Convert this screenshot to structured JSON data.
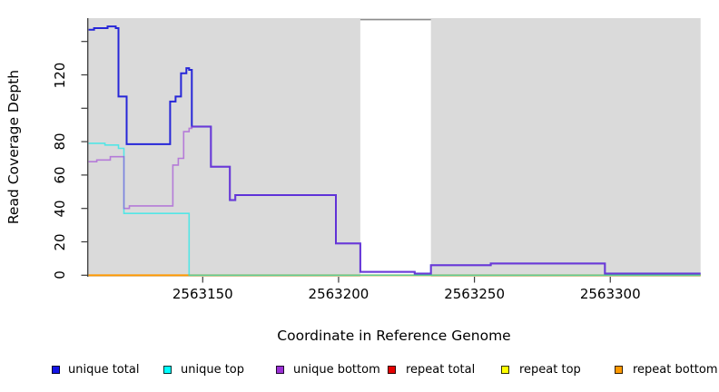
{
  "chart_data": {
    "type": "line",
    "step": true,
    "title": "",
    "xlabel": "Coordinate in Reference Genome",
    "ylabel": "Read Coverage Depth",
    "xlim": [
      2563108,
      2563334
    ],
    "ylim": [
      0,
      154
    ],
    "grid": false,
    "plot_background": "#DADADA",
    "masked_region": {
      "x_start": 2563208,
      "x_end": 2563234,
      "fill": "#FFFFFF",
      "top_border": "#8C8C8C"
    },
    "x_ticks": [
      {
        "value": 2563150,
        "label": "2563150"
      },
      {
        "value": 2563200,
        "label": "2563200"
      },
      {
        "value": 2563250,
        "label": "2563250"
      },
      {
        "value": 2563300,
        "label": "2563300"
      }
    ],
    "y_ticks": [
      {
        "value": 0,
        "label": "0"
      },
      {
        "value": 20,
        "label": "20"
      },
      {
        "value": 40,
        "label": "40"
      },
      {
        "value": 60,
        "label": "60"
      },
      {
        "value": 80,
        "label": "80"
      },
      {
        "value": 100,
        "label": ""
      },
      {
        "value": 120,
        "label": "120"
      },
      {
        "value": 140,
        "label": ""
      }
    ],
    "legend_position": "bottom",
    "series": [
      {
        "name": "unique total",
        "swatch": "#1414E6",
        "stroke": "#2626D8",
        "width": 2,
        "z": 3,
        "points": [
          [
            2563108,
            147
          ],
          [
            2563110,
            148
          ],
          [
            2563115,
            149
          ],
          [
            2563118,
            148
          ],
          [
            2563119,
            107
          ],
          [
            2563122,
            78.5
          ],
          [
            2563138,
            104
          ],
          [
            2563140,
            107
          ],
          [
            2563142,
            121
          ],
          [
            2563144,
            124
          ],
          [
            2563145,
            123
          ],
          [
            2563146,
            89
          ],
          [
            2563153,
            65
          ],
          [
            2563160,
            45
          ],
          [
            2563162,
            48
          ],
          [
            2563199,
            19
          ],
          [
            2563208,
            2
          ],
          [
            2563228,
            1
          ],
          [
            2563234,
            6
          ],
          [
            2563256,
            7
          ],
          [
            2563298,
            1
          ],
          [
            2563334,
            1
          ]
        ]
      },
      {
        "name": "unique top",
        "swatch": "#00FFFF",
        "stroke": "rgba(0,238,238,0.62)",
        "width": 1.6,
        "z": 4,
        "points": [
          [
            2563108,
            79
          ],
          [
            2563114,
            78
          ],
          [
            2563119,
            76
          ],
          [
            2563121,
            37
          ],
          [
            2563145,
            0
          ],
          [
            2563334,
            0
          ]
        ]
      },
      {
        "name": "unique bottom",
        "swatch": "#9B30D6",
        "stroke": "rgba(158,64,214,0.62)",
        "width": 1.6,
        "z": 5,
        "points": [
          [
            2563108,
            68
          ],
          [
            2563111,
            69
          ],
          [
            2563116,
            71
          ],
          [
            2563121,
            40
          ],
          [
            2563123,
            41.5
          ],
          [
            2563139,
            66
          ],
          [
            2563141,
            70
          ],
          [
            2563143,
            86
          ],
          [
            2563145,
            88
          ],
          [
            2563146,
            89
          ],
          [
            2563153,
            65
          ],
          [
            2563160,
            45
          ],
          [
            2563162,
            48
          ],
          [
            2563199,
            19
          ],
          [
            2563208,
            2
          ],
          [
            2563228,
            1
          ],
          [
            2563234,
            6
          ],
          [
            2563256,
            7
          ],
          [
            2563298,
            1
          ],
          [
            2563334,
            1
          ]
        ]
      },
      {
        "name": "repeat total",
        "swatch": "#E60000",
        "stroke": "#E60000",
        "width": 1.6,
        "z": 0,
        "points": [
          [
            2563108,
            0
          ],
          [
            2563334,
            0
          ]
        ]
      },
      {
        "name": "repeat top",
        "swatch": "#FFFF00",
        "stroke": "#FFFF00",
        "width": 1.6,
        "z": 1,
        "points": [
          [
            2563108,
            0
          ],
          [
            2563334,
            0
          ]
        ]
      },
      {
        "name": "repeat bottom",
        "swatch": "#FF9900",
        "stroke": "#FF9900",
        "width": 1.8,
        "z": 2,
        "points": [
          [
            2563108,
            0
          ],
          [
            2563334,
            0
          ]
        ]
      }
    ]
  }
}
